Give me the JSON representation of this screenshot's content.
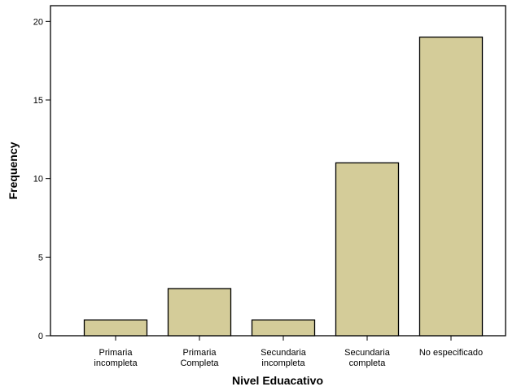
{
  "chart_data": {
    "type": "bar",
    "categories": [
      [
        "Primaria",
        "incompleta"
      ],
      [
        "Primaria",
        "Completa"
      ],
      [
        "Secundaria",
        "incompleta"
      ],
      [
        "Secundaria",
        "completa"
      ],
      [
        "No especificado"
      ]
    ],
    "values": [
      1,
      3,
      1,
      11,
      19
    ],
    "xlabel": "Nivel Eduacativo",
    "ylabel": "Frequency",
    "ylim": [
      0,
      21
    ],
    "yticks": [
      0,
      5,
      10,
      15,
      20
    ],
    "grid": false,
    "legend": "none",
    "bar_color": "#d4cc99",
    "bar_edge_color": "#000000"
  }
}
